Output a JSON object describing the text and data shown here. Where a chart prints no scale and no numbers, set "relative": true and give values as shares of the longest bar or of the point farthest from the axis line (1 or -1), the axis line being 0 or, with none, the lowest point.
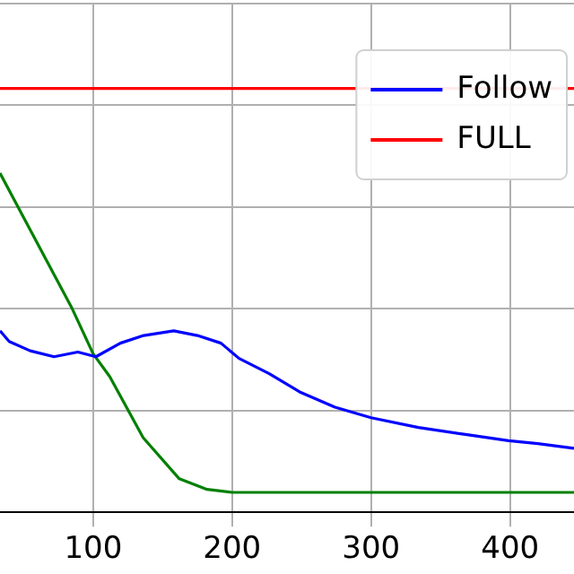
{
  "chart_data": {
    "type": "line",
    "relative": true,
    "xlim": [
      33,
      446
    ],
    "xticks": [
      100,
      200,
      300,
      400
    ],
    "tick_labels": "x",
    "grid": true,
    "legend": "top right",
    "marker": "none",
    "line_style": "solid",
    "series": [
      {
        "name": "Follow",
        "color": "#0000ff",
        "x": [
          33,
          39.6,
          54.7,
          71.9,
          89,
          102,
          119.6,
          136.4,
          158,
          175,
          192,
          205,
          226.7,
          248.6,
          274,
          300,
          334,
          369,
          399,
          420,
          446
        ],
        "values": [
          0.428,
          0.403,
          0.381,
          0.367,
          0.378,
          0.367,
          0.399,
          0.417,
          0.428,
          0.417,
          0.399,
          0.363,
          0.327,
          0.284,
          0.248,
          0.223,
          0.2,
          0.183,
          0.169,
          0.162,
          0.151
        ]
      },
      {
        "name": "FULL",
        "color": "#ff0000",
        "x": [
          33,
          446
        ],
        "values": [
          1,
          1
        ]
      },
      {
        "color": "#008000",
        "x": [
          33,
          85,
          100,
          112,
          136,
          162,
          182,
          200,
          446
        ],
        "values": [
          0.8,
          0.48,
          0.374,
          0.32,
          0.176,
          0.079,
          0.054,
          0.047,
          0.047
        ]
      }
    ]
  }
}
